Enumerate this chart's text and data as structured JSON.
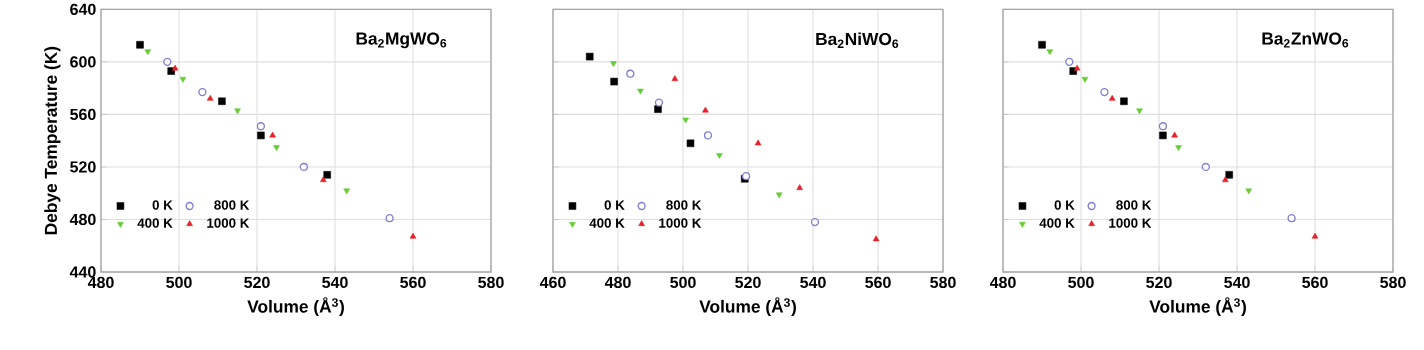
{
  "chart_data": [
    {
      "type": "scatter",
      "xlabel": "Volume (Å$^{3}$)",
      "ylabel": "Debye Temperature (K)",
      "annotations": [
        "Ba$_{2}$MgWO$_{6}$"
      ],
      "xlim": [
        480,
        580
      ],
      "ylim": [
        440,
        640
      ],
      "xticks": [
        480,
        500,
        520,
        540,
        560,
        580
      ],
      "yticks": [
        440,
        480,
        520,
        560,
        600,
        640
      ],
      "grid": true,
      "legend": "bottom left",
      "series": [
        {
          "name": "0 K",
          "color": "#000000",
          "marker": "square",
          "x": [
            490,
            498,
            511,
            521,
            538
          ],
          "values": [
            613,
            593,
            570,
            544,
            514
          ]
        },
        {
          "name": "400 K",
          "color": "#66cc33",
          "marker": "triangle-down",
          "x": [
            492,
            501,
            515,
            525,
            543
          ],
          "values": [
            608,
            587,
            563,
            535,
            502
          ]
        },
        {
          "name": "800 K",
          "color": "#7f7fd0",
          "marker": "circle",
          "x": [
            497,
            506,
            521,
            532,
            554
          ],
          "values": [
            600,
            577,
            551,
            520,
            481
          ]
        },
        {
          "name": "1000 K",
          "color": "#e8202a",
          "marker": "triangle",
          "x": [
            499,
            508,
            524,
            537,
            560
          ],
          "values": [
            595,
            572,
            544,
            510,
            467
          ]
        }
      ]
    },
    {
      "type": "scatter",
      "xlabel": "Volume (Å$^{3}$)",
      "annotations": [
        "Ba$_{2}$NiWO$_{6}$"
      ],
      "xlim": [
        460,
        580
      ],
      "ylim": [
        440,
        640
      ],
      "xticks": [
        460,
        480,
        500,
        520,
        540,
        560,
        580
      ],
      "yticks": [
        440,
        480,
        520,
        560,
        600,
        640
      ],
      "grid": true,
      "legend": "bottom left",
      "tick_labels": "x",
      "series": [
        {
          "name": "0 K",
          "color": "#000000",
          "marker": "square",
          "x": [
            471.3,
            478.8,
            492.3,
            502.3,
            519
          ],
          "values": [
            604,
            585,
            564,
            538,
            511
          ]
        },
        {
          "name": "400 K",
          "color": "#66cc33",
          "marker": "triangle-down",
          "x": [
            478.6,
            486.9,
            500.8,
            511.2,
            529.6
          ],
          "values": [
            599,
            578,
            556,
            529,
            499
          ]
        },
        {
          "name": "800 K",
          "color": "#7f7fd0",
          "marker": "circle",
          "x": [
            483.8,
            492.6,
            507.7,
            519.4,
            540.6
          ],
          "values": [
            591,
            569,
            544,
            513,
            478
          ]
        },
        {
          "name": "1000 K",
          "color": "#e8202a",
          "marker": "triangle",
          "x": [
            497.5,
            506.9,
            523.1,
            535.9,
            559.4
          ],
          "values": [
            587,
            563,
            538,
            504,
            465
          ]
        }
      ]
    },
    {
      "type": "scatter",
      "xlabel": "Volume (Å$^{3}$)",
      "annotations": [
        "Ba$_{2}$ZnWO$_{6}$"
      ],
      "xlim": [
        480,
        580
      ],
      "ylim": [
        440,
        640
      ],
      "xticks": [
        480,
        500,
        520,
        540,
        560,
        580
      ],
      "yticks": [
        440,
        480,
        520,
        560,
        600,
        640
      ],
      "grid": true,
      "legend": "bottom left",
      "tick_labels": "x",
      "series": [
        {
          "name": "0 K",
          "color": "#000000",
          "marker": "square",
          "x": [
            490,
            498,
            511,
            521,
            538
          ],
          "values": [
            613,
            593,
            570,
            544,
            514
          ]
        },
        {
          "name": "400 K",
          "color": "#66cc33",
          "marker": "triangle-down",
          "x": [
            492,
            501,
            515,
            525,
            543
          ],
          "values": [
            608,
            587,
            563,
            535,
            502
          ]
        },
        {
          "name": "800 K",
          "color": "#7f7fd0",
          "marker": "circle",
          "x": [
            497,
            506,
            521,
            532,
            554
          ],
          "values": [
            600,
            577,
            551,
            520,
            481
          ]
        },
        {
          "name": "1000 K",
          "color": "#e8202a",
          "marker": "triangle",
          "x": [
            499,
            508,
            524,
            537,
            560
          ],
          "values": [
            595,
            572,
            544,
            510,
            467
          ]
        }
      ]
    }
  ]
}
